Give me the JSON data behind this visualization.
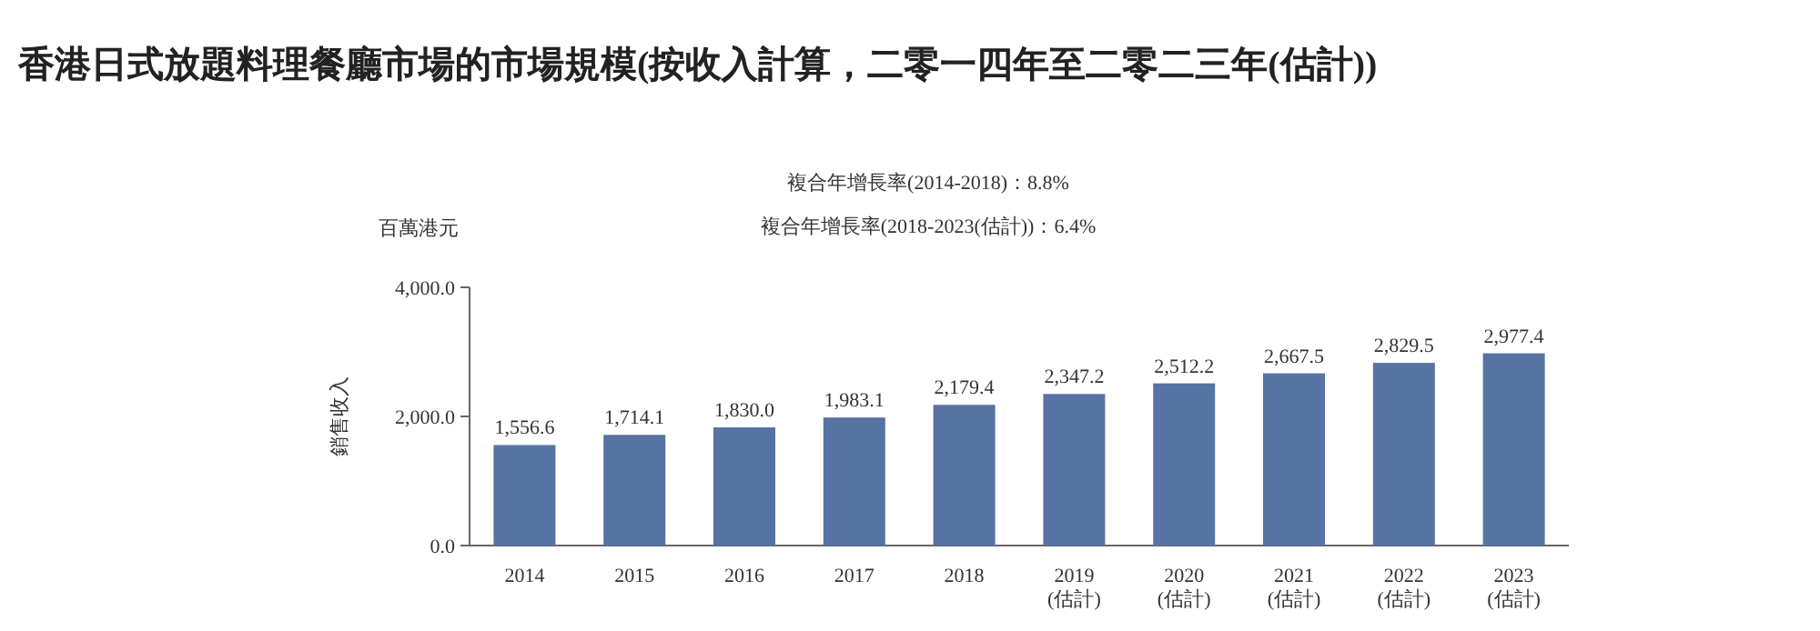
{
  "chart_data": {
    "type": "bar",
    "title": "香港日式放題料理餐廳市場的市場規模(按收入計算，二零一四年至二零二三年(估計))",
    "ylabel": "銷售收入",
    "annotations": [
      "複合年增長率(2014-2018)：8.8%",
      "複合年增長率(2018-2023(估計))：6.4%",
      "百萬港元"
    ],
    "categories": [
      "2014",
      "2015",
      "2016",
      "2017",
      "2018",
      "2019\n(估計)",
      "2020\n(估計)",
      "2021\n(估計)",
      "2022\n(估計)",
      "2023\n(估計)"
    ],
    "values": [
      1556.6,
      1714.1,
      1830.0,
      1983.1,
      2179.4,
      2347.2,
      2512.2,
      2667.5,
      2829.5,
      2977.4
    ],
    "value_labels": [
      "1,556.6",
      "1,714.1",
      "1,830.0",
      "1,983.1",
      "2,179.4",
      "2,347.2",
      "2,512.2",
      "2,667.5",
      "2,829.5",
      "2,977.4"
    ],
    "color": "#5773a3",
    "ylim": [
      0,
      4000
    ],
    "yticks": [
      {
        "value": 0,
        "label": "0.0"
      },
      {
        "value": 2000,
        "label": "2,000.0"
      },
      {
        "value": 4000,
        "label": "4,000.0"
      }
    ],
    "grid": false
  }
}
